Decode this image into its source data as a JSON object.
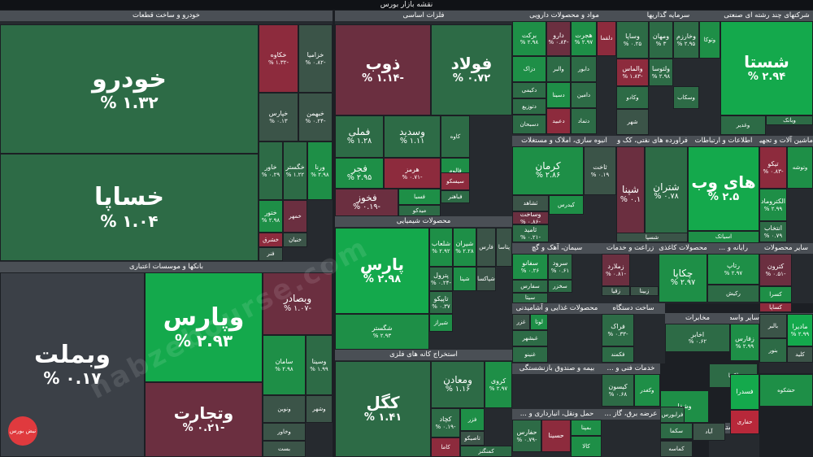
{
  "title": "نقشه بازار بورس",
  "watermark": "nabzebourse.com",
  "logo_text": "نبض بورس",
  "colors": {
    "strong_green": "#14a94c",
    "green": "#1e8f47",
    "light_green": "#2d6b46",
    "neutral": "#3b4047",
    "red": "#8d2b3d",
    "strong_red": "#b8283a"
  },
  "sectors": [
    {
      "name": "خودرو و ساخت قطعات"
    },
    {
      "name": "بانکها و موسسات اعتباری"
    },
    {
      "name": "فلزات اساسی"
    },
    {
      "name": "محصولات شیمیایی"
    },
    {
      "name": "استخراج کانه های فلزی"
    },
    {
      "name": "مواد و محصولات دارویی"
    },
    {
      "name": "سرمایه گذاریها"
    },
    {
      "name": "شرکتهای چند رشته ای صنعتی"
    },
    {
      "name": "انبوه سازی، املاک و مستغلات"
    },
    {
      "name": "فراورده های نفتی، کک و سوخت"
    },
    {
      "name": "اطلاعات و ارتباطات"
    },
    {
      "name": "ماشین آلات و تجهیزات"
    },
    {
      "name": "سیمان، آهک و گچ"
    },
    {
      "name": "زراعت و خدمات"
    },
    {
      "name": "محصولات کاغذی"
    },
    {
      "name": "رایانه و ..."
    },
    {
      "name": "سایر محصولات"
    },
    {
      "name": "محصولات غذایی و آشامیدنی"
    },
    {
      "name": "ساخت دستگاه"
    },
    {
      "name": "مخابرات"
    },
    {
      "name": "بیمه و صندوق بازنشستگی"
    },
    {
      "name": "خدمات فنی و ..."
    },
    {
      "name": "فعالیتهای کمکی به ..."
    },
    {
      "name": "حمل ونقل، انبارداری و ..."
    },
    {
      "name": "عرضه برق، گاز ..."
    },
    {
      "name": "سایر واسطه گریهای ..."
    },
    {
      "name": "هتل و رستوران"
    },
    {
      "name": "لاستیک"
    }
  ],
  "tiles": [
    {
      "name": "خودرو",
      "change": "۱.۳۲ %"
    },
    {
      "name": "خساپا",
      "change": "۱.۰۴ %"
    },
    {
      "name": "خکاوه",
      "change": "-۱.۳۲ %"
    },
    {
      "name": "خزامیا",
      "change": "-۰.۸۲ %"
    },
    {
      "name": "خپارس",
      "change": "۰.۱۳ %"
    },
    {
      "name": "خبهمن",
      "change": "-۰.۲۴ %"
    },
    {
      "name": "خاور",
      "change": "۰.۲۹ %"
    },
    {
      "name": "خگستر",
      "change": "۱.۲۲ %"
    },
    {
      "name": "ورنا",
      "change": "۲.۹۸ %"
    },
    {
      "name": "ختور",
      "change": "۲.۹۸ %"
    },
    {
      "name": "خمهر",
      "change": ""
    },
    {
      "name": "خشرق",
      "change": ""
    },
    {
      "name": "خنیان",
      "change": ""
    },
    {
      "name": "فنر",
      "change": ""
    },
    {
      "name": "وبملت",
      "change": "۰.۱۷ %"
    },
    {
      "name": "وپارس",
      "change": "۲.۹۳ %"
    },
    {
      "name": "وبصادر",
      "change": "-۱.۰۷ %"
    },
    {
      "name": "وتجارت",
      "change": "-۰.۲۱ %"
    },
    {
      "name": "سامان",
      "change": "۲.۹۸ %"
    },
    {
      "name": "وسینا",
      "change": "۱.۹۹ %"
    },
    {
      "name": "ونوین",
      "change": "۰.۳۸ %"
    },
    {
      "name": "وشهر",
      "change": ""
    },
    {
      "name": "وخاور",
      "change": ""
    },
    {
      "name": "بست",
      "change": ""
    },
    {
      "name": "ذوب",
      "change": "-۱.۱۴ %"
    },
    {
      "name": "فولاد",
      "change": "۰.۷۲ %"
    },
    {
      "name": "فملی",
      "change": "۱.۲۸ %"
    },
    {
      "name": "وسدید",
      "change": "۱.۱۱ %"
    },
    {
      "name": "کاوه",
      "change": ""
    },
    {
      "name": "فجر",
      "change": "۲.۹۵ %"
    },
    {
      "name": "هرمز",
      "change": "-۰.۷۱ %"
    },
    {
      "name": "فخوز",
      "change": "-۰.۱۹ %"
    },
    {
      "name": "فالوم",
      "change": ""
    },
    {
      "name": "سیسکو",
      "change": ""
    },
    {
      "name": "فسبا",
      "change": ""
    },
    {
      "name": "فباهنر",
      "change": ""
    },
    {
      "name": "میدکو",
      "change": ""
    },
    {
      "name": "پارس",
      "change": "۲.۹۸ %"
    },
    {
      "name": "شگستر",
      "change": "۲.۹۳ %"
    },
    {
      "name": "شلعاب",
      "change": "۲.۹۲ %"
    },
    {
      "name": "شیران",
      "change": "۲.۲۸ %"
    },
    {
      "name": "فارس",
      "change": ""
    },
    {
      "name": "پتاسا",
      "change": ""
    },
    {
      "name": "پترول",
      "change": "-۰.۲۴ %"
    },
    {
      "name": "تاپیکو",
      "change": "۰.۳۷ %"
    },
    {
      "name": "شپنا",
      "change": ""
    },
    {
      "name": "شیراز",
      "change": ""
    },
    {
      "name": "شپاکسا",
      "change": ""
    },
    {
      "name": "کگل",
      "change": "۱.۴۱ %"
    },
    {
      "name": "ومعادن",
      "change": "۱.۱۶ %"
    },
    {
      "name": "کروی",
      "change": "۲.۹۷ %"
    },
    {
      "name": "کچاد",
      "change": "-۰.۱۹ %"
    },
    {
      "name": "فزر",
      "change": ""
    },
    {
      "name": "تاصیکو",
      "change": ""
    },
    {
      "name": "کاما",
      "change": ""
    },
    {
      "name": "کمنگنز",
      "change": ""
    },
    {
      "name": "برکت",
      "change": "۲.۹۸ %"
    },
    {
      "name": "دارو",
      "change": "-۰.۸۴ %"
    },
    {
      "name": "هجرت",
      "change": "۲.۹۷ %"
    },
    {
      "name": "دلقما",
      "change": ""
    },
    {
      "name": "دزاک",
      "change": ""
    },
    {
      "name": "والبر",
      "change": ""
    },
    {
      "name": "دکیمی",
      "change": ""
    },
    {
      "name": "دتوزیع",
      "change": ""
    },
    {
      "name": "دسبحان",
      "change": ""
    },
    {
      "name": "دسینا",
      "change": ""
    },
    {
      "name": "دعبید",
      "change": ""
    },
    {
      "name": "دابور",
      "change": ""
    },
    {
      "name": "دامین",
      "change": ""
    },
    {
      "name": "دتماد",
      "change": ""
    },
    {
      "name": "وساپا",
      "change": "۰.۲۵ %"
    },
    {
      "name": "ومهان",
      "change": "۳ %"
    },
    {
      "name": "وخارزم",
      "change": "۲.۹۵ %"
    },
    {
      "name": "وتوکا",
      "change": ""
    },
    {
      "name": "والماس",
      "change": "-۱.۸۳ %"
    },
    {
      "name": "ولتوسا",
      "change": "۲.۹۸ %"
    },
    {
      "name": "وسکاب",
      "change": ""
    },
    {
      "name": "وکادو",
      "change": ""
    },
    {
      "name": "شهر",
      "change": ""
    },
    {
      "name": "شستا",
      "change": "۲.۹۴ %"
    },
    {
      "name": "وبانک",
      "change": ""
    },
    {
      "name": "وغدیر",
      "change": ""
    },
    {
      "name": "کرمان",
      "change": "۲.۸۶ %"
    },
    {
      "name": "ثاخت",
      "change": "۰.۱۹ %"
    },
    {
      "name": "ثشاهد",
      "change": ""
    },
    {
      "name": "وساخت",
      "change": "-۰.۸۶ %"
    },
    {
      "name": "کیدرس",
      "change": ""
    },
    {
      "name": "ثامید",
      "change": "-۰.۲۱ %"
    },
    {
      "name": "شپنا",
      "change": "۰.۱ %"
    },
    {
      "name": "شتران",
      "change": "۰.۷۸ %"
    },
    {
      "name": "شسپا",
      "change": ""
    },
    {
      "name": "های وب",
      "change": "۲.۵ %"
    },
    {
      "name": "اسیاتک",
      "change": ""
    },
    {
      "name": "تیکو",
      "change": "-۰.۸۳ %"
    },
    {
      "name": "وتوشه",
      "change": ""
    },
    {
      "name": "الکتروماد",
      "change": "۲.۹۹ %"
    },
    {
      "name": "انتخاب",
      "change": "۰.۷۹ %"
    },
    {
      "name": "سفانو",
      "change": "۰.۲۶ %"
    },
    {
      "name": "سرود",
      "change": "۰.۶۱ %"
    },
    {
      "name": "سفارس",
      "change": ""
    },
    {
      "name": "سخزر",
      "change": ""
    },
    {
      "name": "سیتا",
      "change": ""
    },
    {
      "name": "زملارد",
      "change": "-۰.۸۱ %"
    },
    {
      "name": "زقیا",
      "change": ""
    },
    {
      "name": "زبینا",
      "change": ""
    },
    {
      "name": "چکاپا",
      "change": "۲.۹۷ %"
    },
    {
      "name": "چفیبر",
      "change": ""
    },
    {
      "name": "رتاپ",
      "change": "۲.۹۷ %"
    },
    {
      "name": "رکیش",
      "change": ""
    },
    {
      "name": "کترون",
      "change": "-۰.۵۱ %"
    },
    {
      "name": "کسرا",
      "change": ""
    },
    {
      "name": "کساپا",
      "change": ""
    },
    {
      "name": "غزر",
      "change": ""
    },
    {
      "name": "لوتا",
      "change": ""
    },
    {
      "name": "غبشهر",
      "change": ""
    },
    {
      "name": "غنینو",
      "change": ""
    },
    {
      "name": "فراک",
      "change": "-۰.۳۳ %"
    },
    {
      "name": "فکمند",
      "change": ""
    },
    {
      "name": "اخابر",
      "change": "۰.۶۲ %"
    },
    {
      "name": "زفارس",
      "change": "۲.۹۹ %"
    },
    {
      "name": "ماديرا",
      "change": "۲.۹۹ %"
    },
    {
      "name": "کلید",
      "change": ""
    },
    {
      "name": "بالبر",
      "change": ""
    },
    {
      "name": "بنور",
      "change": ""
    },
    {
      "name": "کیسون",
      "change": "۰.۶۸ %"
    },
    {
      "name": "وکغدر",
      "change": "۲.۹۷ %"
    },
    {
      "name": "وشفا",
      "change": ""
    },
    {
      "name": "لکما",
      "change": "۱.۷۵ %"
    },
    {
      "name": "فسدرا",
      "change": ""
    },
    {
      "name": "حشکوه",
      "change": "-۰.۳۳ %"
    },
    {
      "name": "حفارس",
      "change": "-۰.۷۹ %"
    },
    {
      "name": "حسینا",
      "change": ""
    },
    {
      "name": "بمپنا",
      "change": ""
    },
    {
      "name": "کالا",
      "change": ""
    },
    {
      "name": "فرابورس",
      "change": ""
    },
    {
      "name": "سکما",
      "change": ""
    },
    {
      "name": "آباد",
      "change": ""
    },
    {
      "name": "کماسه",
      "change": ""
    },
    {
      "name": "حفاری",
      "change": ""
    }
  ]
}
